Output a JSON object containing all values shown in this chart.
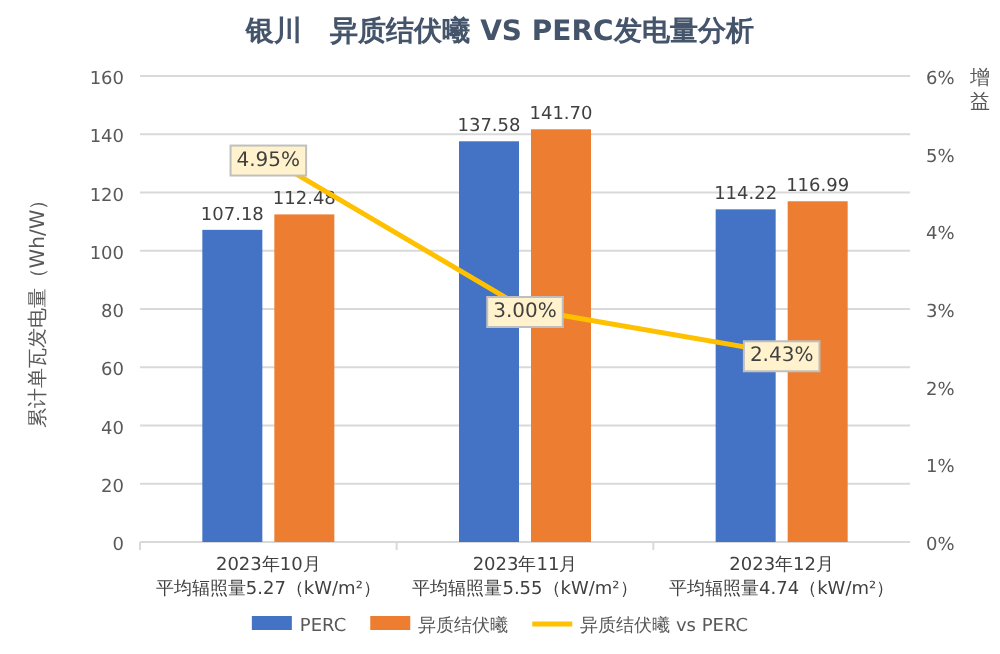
{
  "chart_data": {
    "type": "bar",
    "title": "银川　异质结伏曦 VS PERC发电量分析",
    "ylabel": "累计单瓦发电量（Wh/W）",
    "y2label": "增益",
    "categories": [
      "2023年10月平均辐照量5.27（kW/m²）",
      "2023年11月平均辐照量5.55（kW/m²）",
      "2023年12月平均辐照量4.74（kW/m²）"
    ],
    "series": [
      {
        "name": "PERC",
        "color": "#4472c4",
        "values": [
          107.18,
          137.58,
          114.22
        ],
        "value_labels": [
          "107.18",
          "137.58",
          "114.22"
        ]
      },
      {
        "name": "异质结伏曦",
        "color": "#ed7d31",
        "values": [
          112.48,
          141.7,
          116.99
        ],
        "value_labels": [
          "112.48",
          "141.70",
          "116.99"
        ]
      },
      {
        "name": "异质结伏曦 vs PERC",
        "type": "line",
        "axis": "y2",
        "color": "#ffc000",
        "values": [
          4.95,
          3.0,
          2.43
        ],
        "value_labels": [
          "4.95%",
          "3.00%",
          "2.43%"
        ]
      }
    ],
    "ylim": [
      0,
      160
    ],
    "yticks": [
      0,
      20,
      40,
      60,
      80,
      100,
      120,
      140,
      160
    ],
    "y2lim": [
      0,
      6
    ],
    "y2ticks": [
      {
        "value": 0,
        "label": "0%"
      },
      {
        "value": 1,
        "label": "1%"
      },
      {
        "value": 2,
        "label": "2%"
      },
      {
        "value": 3,
        "label": "3%"
      },
      {
        "value": 4,
        "label": "4%"
      },
      {
        "value": 5,
        "label": "5%"
      },
      {
        "value": 6,
        "label": "6%"
      }
    ],
    "grid": "y",
    "legend": "bottom"
  }
}
